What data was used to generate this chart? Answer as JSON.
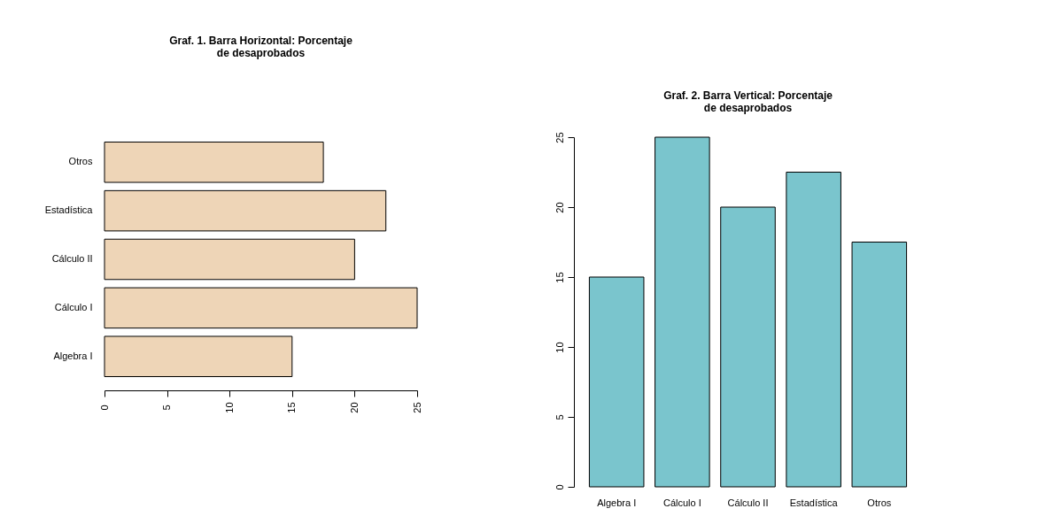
{
  "chart_data": [
    {
      "type": "bar",
      "orientation": "horizontal",
      "title": "Graf. 1. Barra Horizontal: Porcentaje\nde desaprobados",
      "categories": [
        "Otros",
        "Estadística",
        "Cálculo II",
        "Cálculo I",
        "Algebra I"
      ],
      "values": [
        17.5,
        22.5,
        20,
        25,
        15
      ],
      "color": "#eed5b7",
      "xlim": [
        0,
        25
      ],
      "xticks": [
        0,
        5,
        10,
        15,
        20,
        25
      ]
    },
    {
      "type": "bar",
      "title": "Graf. 2. Barra Vertical: Porcentaje\nde desaprobados",
      "categories": [
        "Algebra I",
        "Cálculo I",
        "Cálculo II",
        "Estadística",
        "Otros"
      ],
      "values": [
        15,
        25,
        20,
        22.5,
        17.5
      ],
      "color": "#7ac5cd",
      "ylim": [
        0,
        25
      ],
      "yticks": [
        0,
        5,
        10,
        15,
        20,
        25
      ]
    }
  ]
}
